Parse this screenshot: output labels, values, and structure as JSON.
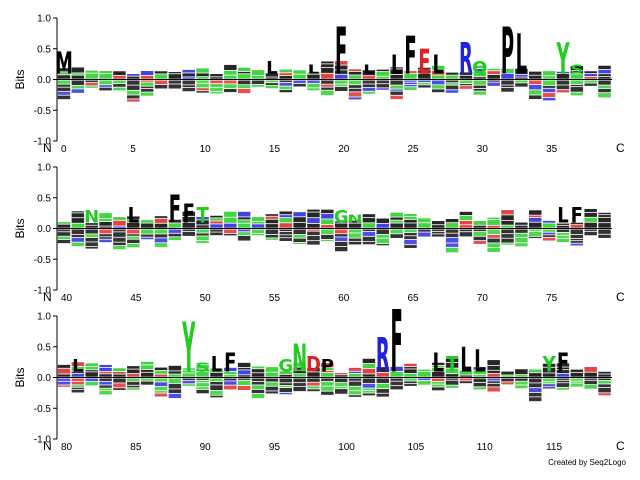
{
  "chart_data": {
    "type": "sequence-logo",
    "ylabel": "Bits",
    "ylim": [
      -1.0,
      1.0
    ],
    "yticks": [
      "1.0",
      "0.5",
      "0.0",
      "-0.5",
      "-1.0"
    ],
    "n_label": "N",
    "c_label": "C",
    "grid": false,
    "colors": {
      "hydrophobic": "#000000",
      "polar": "#22cc22",
      "basic": "#2222dd",
      "acidic": "#dd2222"
    },
    "rows": [
      {
        "positions": [
          0,
          35
        ],
        "xticks": [
          "0",
          "5",
          "10",
          "15",
          "20",
          "25",
          "30",
          "35"
        ],
        "prominent_residues": [
          {
            "pos": 0,
            "letter": "M",
            "bits": 0.35
          },
          {
            "pos": 15,
            "letter": "L",
            "bits": 0.2
          },
          {
            "pos": 18,
            "letter": "L",
            "bits": 0.15
          },
          {
            "pos": 20,
            "letter": "F",
            "bits": 0.75
          },
          {
            "pos": 22,
            "letter": "L",
            "bits": 0.15
          },
          {
            "pos": 24,
            "letter": "L",
            "bits": 0.3
          },
          {
            "pos": 25,
            "letter": "F",
            "bits": 0.6
          },
          {
            "pos": 26,
            "letter": "E",
            "bits": 0.4
          },
          {
            "pos": 27,
            "letter": "L",
            "bits": 0.3
          },
          {
            "pos": 29,
            "letter": "R",
            "bits": 0.5
          },
          {
            "pos": 30,
            "letter": "Q",
            "bits": 0.2
          },
          {
            "pos": 32,
            "letter": "P",
            "bits": 0.75
          },
          {
            "pos": 33,
            "letter": "L",
            "bits": 0.65
          },
          {
            "pos": 36,
            "letter": "Y",
            "bits": 0.5
          },
          {
            "pos": 37,
            "letter": "S",
            "bits": 0.15
          }
        ]
      },
      {
        "positions": [
          40,
          75
        ],
        "xticks": [
          "40",
          "45",
          "50",
          "55",
          "60",
          "65",
          "70",
          "75"
        ],
        "prominent_residues": [
          {
            "pos": 42,
            "letter": "N",
            "bits": 0.2
          },
          {
            "pos": 45,
            "letter": "L",
            "bits": 0.25
          },
          {
            "pos": 48,
            "letter": "F",
            "bits": 0.45
          },
          {
            "pos": 49,
            "letter": "F",
            "bits": 0.3
          },
          {
            "pos": 50,
            "letter": "T",
            "bits": 0.25
          },
          {
            "pos": 60,
            "letter": "G",
            "bits": 0.2
          },
          {
            "pos": 61,
            "letter": "N",
            "bits": 0.12
          },
          {
            "pos": 76,
            "letter": "L",
            "bits": 0.25
          },
          {
            "pos": 77,
            "letter": "F",
            "bits": 0.25
          }
        ]
      },
      {
        "positions": [
          80,
          115
        ],
        "xticks": [
          "80",
          "85",
          "90",
          "95",
          "100",
          "105",
          "110",
          "115"
        ],
        "prominent_residues": [
          {
            "pos": 81,
            "letter": "L",
            "bits": 0.2
          },
          {
            "pos": 89,
            "letter": "Y",
            "bits": 0.8
          },
          {
            "pos": 90,
            "letter": "S",
            "bits": 0.15
          },
          {
            "pos": 91,
            "letter": "L",
            "bits": 0.25
          },
          {
            "pos": 92,
            "letter": "F",
            "bits": 0.3
          },
          {
            "pos": 96,
            "letter": "G",
            "bits": 0.2
          },
          {
            "pos": 97,
            "letter": "N",
            "bits": 0.45
          },
          {
            "pos": 98,
            "letter": "D",
            "bits": 0.25
          },
          {
            "pos": 99,
            "letter": "P",
            "bits": 0.2
          },
          {
            "pos": 103,
            "letter": "R",
            "bits": 0.55
          },
          {
            "pos": 104,
            "letter": "F",
            "bits": 1.0
          },
          {
            "pos": 107,
            "letter": "L",
            "bits": 0.3
          },
          {
            "pos": 108,
            "letter": "T",
            "bits": 0.25
          },
          {
            "pos": 109,
            "letter": "L",
            "bits": 0.4
          },
          {
            "pos": 110,
            "letter": "L",
            "bits": 0.35
          },
          {
            "pos": 115,
            "letter": "Y",
            "bits": 0.25
          },
          {
            "pos": 116,
            "letter": "F",
            "bits": 0.3
          }
        ]
      }
    ]
  },
  "credit": "Created by Seq2Logo"
}
